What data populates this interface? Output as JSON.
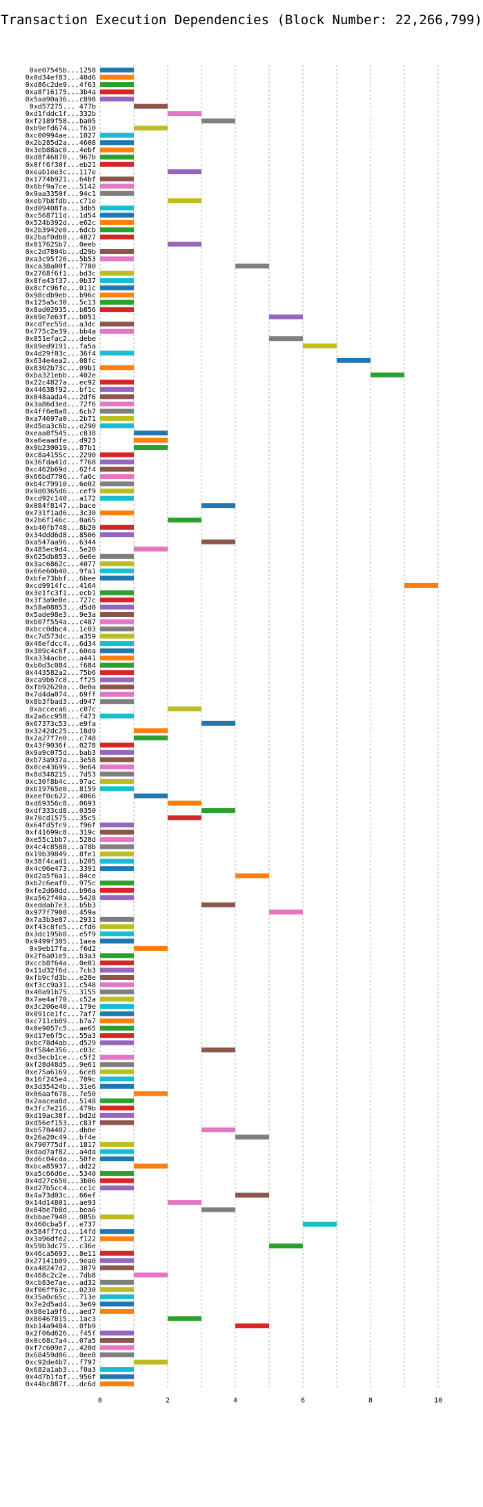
{
  "chart_data": {
    "type": "bar",
    "orientation": "horizontal",
    "title": "Transaction Execution Dependencies (Block Number: 22,266,799)",
    "xlabel": "",
    "ylabel": "",
    "xlim": [
      0,
      10
    ],
    "x_ticks": [
      0,
      2,
      4,
      6,
      8,
      10
    ],
    "grid": "x-dashed",
    "legend": "none",
    "palette": [
      "#1f77b4",
      "#ff7f0e",
      "#2ca02c",
      "#d62728",
      "#9467bd",
      "#8c564b",
      "#e377c2",
      "#7f7f7f",
      "#bcbd22",
      "#17becf"
    ],
    "tasks": [
      {
        "tx": "0xe07545b...1258",
        "start": 0,
        "end": 1
      },
      {
        "tx": "0x0d34ef83...40d6",
        "start": 0,
        "end": 1
      },
      {
        "tx": "0xd86c2de9...4f63",
        "start": 0,
        "end": 1
      },
      {
        "tx": "0xa8f16175...3b4a",
        "start": 0,
        "end": 1
      },
      {
        "tx": "0x5aa90a36...c898",
        "start": 0,
        "end": 1
      },
      {
        "tx": "0xd57275... 477b",
        "start": 1,
        "end": 2
      },
      {
        "tx": "0xd1fddc1f...332b",
        "start": 2,
        "end": 3
      },
      {
        "tx": "0xf2189f58...ba05",
        "start": 3,
        "end": 4
      },
      {
        "tx": "0xb9efd674...f610",
        "start": 1,
        "end": 2
      },
      {
        "tx": "0xc00994ae...1027",
        "start": 0,
        "end": 1
      },
      {
        "tx": "0x2b285d2a...4608",
        "start": 0,
        "end": 1
      },
      {
        "tx": "0x3eb88ac0...4ebf",
        "start": 0,
        "end": 1
      },
      {
        "tx": "0xd8f46870...967b",
        "start": 0,
        "end": 1
      },
      {
        "tx": "0x0ff6f30f...eb21",
        "start": 0,
        "end": 1
      },
      {
        "tx": "0xeab1ee3c...117e",
        "start": 2,
        "end": 3
      },
      {
        "tx": "0x1774b921...64bf",
        "start": 0,
        "end": 1
      },
      {
        "tx": "0x6bf9a7ce...5142",
        "start": 0,
        "end": 1
      },
      {
        "tx": "0x9aa3350f...94c1",
        "start": 0,
        "end": 1
      },
      {
        "tx": "0xeb7b8fdb...c71e",
        "start": 2,
        "end": 3
      },
      {
        "tx": "0xd09408fa...3db5",
        "start": 0,
        "end": 1
      },
      {
        "tx": "0xc568711d...1d54",
        "start": 0,
        "end": 1
      },
      {
        "tx": "0x524b392d...e62c",
        "start": 0,
        "end": 1
      },
      {
        "tx": "0x2b3942e0...6dcb",
        "start": 0,
        "end": 1
      },
      {
        "tx": "0x2baf0db8...4827",
        "start": 0,
        "end": 1
      },
      {
        "tx": "0x01762Sb7...0eeb",
        "start": 2,
        "end": 3
      },
      {
        "tx": "0xc2d7894b...d29b",
        "start": 0,
        "end": 1
      },
      {
        "tx": "0xa3c95f26...5b53",
        "start": 0,
        "end": 1
      },
      {
        "tx": "0xca38a00f...7780",
        "start": 4,
        "end": 5
      },
      {
        "tx": "0x2768f6f1...bd3c",
        "start": 0,
        "end": 1
      },
      {
        "tx": "0x8fe43f37...0b37",
        "start": 0,
        "end": 1
      },
      {
        "tx": "0x8cfc96fe...011c",
        "start": 0,
        "end": 1
      },
      {
        "tx": "0x98cdb9eb...b96c",
        "start": 0,
        "end": 1
      },
      {
        "tx": "0x125a5c30...5c13",
        "start": 0,
        "end": 1
      },
      {
        "tx": "0x8ad02935...b856",
        "start": 0,
        "end": 1
      },
      {
        "tx": "0x69e7e63f...b051",
        "start": 5,
        "end": 6
      },
      {
        "tx": "0xcdfec55d...a3dc",
        "start": 0,
        "end": 1
      },
      {
        "tx": "0x775c2e39...bb4a",
        "start": 0,
        "end": 1
      },
      {
        "tx": "0x851efac2...debe",
        "start": 5,
        "end": 6
      },
      {
        "tx": "0x89ed9191...fa5a",
        "start": 6,
        "end": 7
      },
      {
        "tx": "0x4d29f03c...36f4",
        "start": 0,
        "end": 1
      },
      {
        "tx": "0x634e4ea2...08fc",
        "start": 7,
        "end": 8
      },
      {
        "tx": "0x8302b73c...09b1",
        "start": 0,
        "end": 1
      },
      {
        "tx": "0xba321ebb...402e",
        "start": 8,
        "end": 9
      },
      {
        "tx": "0x22c4827a...ec92",
        "start": 0,
        "end": 1
      },
      {
        "tx": "0x4463Bf92...bf1c",
        "start": 0,
        "end": 1
      },
      {
        "tx": "0x048aada4...2df6",
        "start": 0,
        "end": 1
      },
      {
        "tx": "0x3a86d3ed...72f6",
        "start": 0,
        "end": 1
      },
      {
        "tx": "0x4ff6e8a8...6cb7",
        "start": 0,
        "end": 1
      },
      {
        "tx": "0xa74697a0...2b71",
        "start": 0,
        "end": 1
      },
      {
        "tx": "0xd5ea3c6b...e290",
        "start": 0,
        "end": 1
      },
      {
        "tx": "0xeaa8f545...c838",
        "start": 1,
        "end": 2
      },
      {
        "tx": "0xa6eaadfe...d923",
        "start": 1,
        "end": 2
      },
      {
        "tx": "0x9b230019...87b1",
        "start": 1,
        "end": 2
      },
      {
        "tx": "0xc8a415Sc...2290",
        "start": 0,
        "end": 1
      },
      {
        "tx": "0x36fda41d...f768",
        "start": 0,
        "end": 1
      },
      {
        "tx": "0xc462b69d...62f4",
        "start": 0,
        "end": 1
      },
      {
        "tx": "0x66bd7706...fa6c",
        "start": 0,
        "end": 1
      },
      {
        "tx": "0xb4c79910...6e02",
        "start": 0,
        "end": 1
      },
      {
        "tx": "0x9d0365d6...cef9",
        "start": 0,
        "end": 1
      },
      {
        "tx": "0xcd92c140...a172",
        "start": 0,
        "end": 1
      },
      {
        "tx": "0x084f8147...bace",
        "start": 3,
        "end": 4
      },
      {
        "tx": "0x731f1ad6...3c30",
        "start": 0,
        "end": 1
      },
      {
        "tx": "0x2b6f146c...0a65",
        "start": 2,
        "end": 3
      },
      {
        "tx": "0xb40fb748...8b20",
        "start": 0,
        "end": 1
      },
      {
        "tx": "0x34ddd6d8...8506",
        "start": 0,
        "end": 1
      },
      {
        "tx": "0xa547aa96...6344",
        "start": 3,
        "end": 4
      },
      {
        "tx": "0x485ec9d4...5e20",
        "start": 1,
        "end": 2
      },
      {
        "tx": "0x625db853...6e6e",
        "start": 0,
        "end": 1
      },
      {
        "tx": "0x3ac6862c...4077",
        "start": 0,
        "end": 1
      },
      {
        "tx": "0x66e60b40...9fa1",
        "start": 0,
        "end": 1
      },
      {
        "tx": "0xbfe73bbf...6bee",
        "start": 0,
        "end": 1
      },
      {
        "tx": "0xcd9914fc...4164",
        "start": 9,
        "end": 10
      },
      {
        "tx": "0x3e1fc3f1...ecb1",
        "start": 0,
        "end": 1
      },
      {
        "tx": "0x3f3a9e8e...727c",
        "start": 0,
        "end": 1
      },
      {
        "tx": "0x58a08853...d5d0",
        "start": 0,
        "end": 1
      },
      {
        "tx": "0x5ade98e3...9e3a",
        "start": 0,
        "end": 1
      },
      {
        "tx": "0xb07f554a...c487",
        "start": 0,
        "end": 1
      },
      {
        "tx": "0xbcc0dbc4...1c03",
        "start": 0,
        "end": 1
      },
      {
        "tx": "0xc7d573dc...a359",
        "start": 0,
        "end": 1
      },
      {
        "tx": "0x46efdcc4...6d34",
        "start": 0,
        "end": 1
      },
      {
        "tx": "0x309c4c6f...60ea",
        "start": 0,
        "end": 1
      },
      {
        "tx": "0xa334acbe...a441",
        "start": 0,
        "end": 1
      },
      {
        "tx": "0xb0d3c084...f684",
        "start": 0,
        "end": 1
      },
      {
        "tx": "0x443582a2...75b6",
        "start": 0,
        "end": 1
      },
      {
        "tx": "0xca9b67c8...ff25",
        "start": 0,
        "end": 1
      },
      {
        "tx": "0xfb92620a...0e0a",
        "start": 0,
        "end": 1
      },
      {
        "tx": "0x7d4da074...69ff",
        "start": 0,
        "end": 1
      },
      {
        "tx": "0x8b3fbad3...d947",
        "start": 0,
        "end": 1
      },
      {
        "tx": "0xacceca6...c07c",
        "start": 2,
        "end": 3
      },
      {
        "tx": "0x2a6cc958...f473",
        "start": 0,
        "end": 1
      },
      {
        "tx": "0x67373c53...e9fa",
        "start": 3,
        "end": 4
      },
      {
        "tx": "0x3242dc25...18d9",
        "start": 1,
        "end": 2
      },
      {
        "tx": "0x2a27f7e0...c748",
        "start": 1,
        "end": 2
      },
      {
        "tx": "0x43f9036f...0278",
        "start": 0,
        "end": 1
      },
      {
        "tx": "0x9a9c075d...bab3",
        "start": 0,
        "end": 1
      },
      {
        "tx": "0xb73a937a...3e58",
        "start": 0,
        "end": 1
      },
      {
        "tx": "0x0ce43699...9e64",
        "start": 0,
        "end": 1
      },
      {
        "tx": "0x8d348215...7d53",
        "start": 0,
        "end": 1
      },
      {
        "tx": "0xc30f8b4c...97ac",
        "start": 0,
        "end": 1
      },
      {
        "tx": "0xb19765e0...8159",
        "start": 0,
        "end": 1
      },
      {
        "tx": "0xeef0c622...4066",
        "start": 1,
        "end": 2
      },
      {
        "tx": "0xd69356c8...0693",
        "start": 2,
        "end": 3
      },
      {
        "tx": "0xdf333cd8...0350",
        "start": 3,
        "end": 4
      },
      {
        "tx": "0x70cd1575...35c5",
        "start": 2,
        "end": 3
      },
      {
        "tx": "0x64fd5fc9...f96f",
        "start": 0,
        "end": 1
      },
      {
        "tx": "0xf41699c8...319c",
        "start": 0,
        "end": 1
      },
      {
        "tx": "0xe55c1bb7...528d",
        "start": 0,
        "end": 1
      },
      {
        "tx": "0x4c4c8588...a78b",
        "start": 0,
        "end": 1
      },
      {
        "tx": "0x19b39849...8fe1",
        "start": 0,
        "end": 1
      },
      {
        "tx": "0x38f4cad1...b205",
        "start": 0,
        "end": 1
      },
      {
        "tx": "0x4c06e473...3391",
        "start": 0,
        "end": 1
      },
      {
        "tx": "0xd2a5f6a1...84ce",
        "start": 4,
        "end": 5
      },
      {
        "tx": "0xb2c6eaf0...975c",
        "start": 0,
        "end": 1
      },
      {
        "tx": "0xfe2d60dd...b96a",
        "start": 0,
        "end": 1
      },
      {
        "tx": "0xa562f40a...5428",
        "start": 0,
        "end": 1
      },
      {
        "tx": "0xeddab7e3...b5b3",
        "start": 3,
        "end": 4
      },
      {
        "tx": "0x977f7900...459a",
        "start": 5,
        "end": 6
      },
      {
        "tx": "0x7a3b3e87...2931",
        "start": 0,
        "end": 1
      },
      {
        "tx": "0xf43c8fe5...cfd6",
        "start": 0,
        "end": 1
      },
      {
        "tx": "0x3dc195b8...e5f9",
        "start": 0,
        "end": 1
      },
      {
        "tx": "0x9499f305...1aea",
        "start": 0,
        "end": 1
      },
      {
        "tx": "0x9eb17fa...f6d2",
        "start": 1,
        "end": 2
      },
      {
        "tx": "0x2f6a01e5...b3a3",
        "start": 0,
        "end": 1
      },
      {
        "tx": "0xccb8f64a...0e81",
        "start": 0,
        "end": 1
      },
      {
        "tx": "0x11d32f6d...7cb3",
        "start": 0,
        "end": 1
      },
      {
        "tx": "0xfb9cfd3b...e28e",
        "start": 0,
        "end": 1
      },
      {
        "tx": "0xf3cc9a31...c548",
        "start": 0,
        "end": 1
      },
      {
        "tx": "0x40a91b75...3155",
        "start": 0,
        "end": 1
      },
      {
        "tx": "0x7ae4af70...c52a",
        "start": 0,
        "end": 1
      },
      {
        "tx": "0x3c206e40...179e",
        "start": 0,
        "end": 1
      },
      {
        "tx": "0x091ce1fc...7af7",
        "start": 0,
        "end": 1
      },
      {
        "tx": "0xc711cb89...b7a7",
        "start": 0,
        "end": 1
      },
      {
        "tx": "0x0e9057c5...ae65",
        "start": 0,
        "end": 1
      },
      {
        "tx": "0xd17e6f5c...55a3",
        "start": 0,
        "end": 1
      },
      {
        "tx": "0xbc78d4ab...d529",
        "start": 0,
        "end": 1
      },
      {
        "tx": "0xf584e356...c03c",
        "start": 3,
        "end": 4
      },
      {
        "tx": "0xd3ecb1ce...c5f2",
        "start": 0,
        "end": 1
      },
      {
        "tx": "0xf28d48d5...9e61",
        "start": 0,
        "end": 1
      },
      {
        "tx": "0xe75a6169...6ce8",
        "start": 0,
        "end": 1
      },
      {
        "tx": "0x16f245e4...709c",
        "start": 0,
        "end": 1
      },
      {
        "tx": "0x3d35424b...31e6",
        "start": 0,
        "end": 1
      },
      {
        "tx": "0x06aaf678...7e50",
        "start": 1,
        "end": 2
      },
      {
        "tx": "0x2aacea8d...5148",
        "start": 0,
        "end": 1
      },
      {
        "tx": "0x3fc7e216...479b",
        "start": 0,
        "end": 1
      },
      {
        "tx": "0xd19ac38f...bd2d",
        "start": 0,
        "end": 1
      },
      {
        "tx": "0xd56ef153...c83f",
        "start": 0,
        "end": 1
      },
      {
        "tx": "0xb5784402...db0e",
        "start": 3,
        "end": 4
      },
      {
        "tx": "0x26a20c49...bf4e",
        "start": 4,
        "end": 5
      },
      {
        "tx": "0x790775df...1817",
        "start": 0,
        "end": 1
      },
      {
        "tx": "0xdad7af82...a4da",
        "start": 0,
        "end": 1
      },
      {
        "tx": "0xd6c04cda...50fe",
        "start": 0,
        "end": 1
      },
      {
        "tx": "0xbca85937...dd22",
        "start": 1,
        "end": 2
      },
      {
        "tx": "0xa5c66d6e...5340",
        "start": 0,
        "end": 1
      },
      {
        "tx": "0x4d27c650...3b06",
        "start": 0,
        "end": 1
      },
      {
        "tx": "0xd27b5cc4...cc1c",
        "start": 0,
        "end": 1
      },
      {
        "tx": "0x4a73d03c...66ef",
        "start": 4,
        "end": 5
      },
      {
        "tx": "0x14d14801...ae93",
        "start": 2,
        "end": 3
      },
      {
        "tx": "0x84be7b8d...bea6",
        "start": 3,
        "end": 4
      },
      {
        "tx": "0xbbae7940...085b",
        "start": 0,
        "end": 1
      },
      {
        "tx": "0x460cba5f...e737",
        "start": 6,
        "end": 7
      },
      {
        "tx": "0x584ff7cd...14fd",
        "start": 0,
        "end": 1
      },
      {
        "tx": "0x3a96dfe2...f122",
        "start": 0,
        "end": 1
      },
      {
        "tx": "0x59b3dc75...c36e",
        "start": 5,
        "end": 6
      },
      {
        "tx": "0x46ca5693...8e11",
        "start": 0,
        "end": 1
      },
      {
        "tx": "0x27141b09...9ea0",
        "start": 0,
        "end": 1
      },
      {
        "tx": "0xa48247d2...3879",
        "start": 0,
        "end": 1
      },
      {
        "tx": "0x468c2c2e...7db8",
        "start": 1,
        "end": 2
      },
      {
        "tx": "0xcb83e7ae...ad32",
        "start": 0,
        "end": 1
      },
      {
        "tx": "0xf06ff63c...0230",
        "start": 0,
        "end": 1
      },
      {
        "tx": "0x35a0c65c...713e",
        "start": 0,
        "end": 1
      },
      {
        "tx": "0x7e2d5ad4...3e69",
        "start": 0,
        "end": 1
      },
      {
        "tx": "0x98e1a9f6...aed7",
        "start": 0,
        "end": 1
      },
      {
        "tx": "0x80467815...1ac3",
        "start": 2,
        "end": 3
      },
      {
        "tx": "0xb14a9484...0fb9",
        "start": 4,
        "end": 5
      },
      {
        "tx": "0x2f06d626...f45f",
        "start": 0,
        "end": 1
      },
      {
        "tx": "0x0c68c7a4...07a5",
        "start": 0,
        "end": 1
      },
      {
        "tx": "0xf7c609e7...420d",
        "start": 0,
        "end": 1
      },
      {
        "tx": "0x68459d06...0ee8",
        "start": 0,
        "end": 1
      },
      {
        "tx": "0xc92de4b7...f797",
        "start": 1,
        "end": 2
      },
      {
        "tx": "0x682a1ab3...f0a3",
        "start": 0,
        "end": 1
      },
      {
        "tx": "0x4d7b1faf...956f",
        "start": 0,
        "end": 1
      },
      {
        "tx": "0x44bc887f...dc6d",
        "start": 0,
        "end": 1
      }
    ]
  }
}
